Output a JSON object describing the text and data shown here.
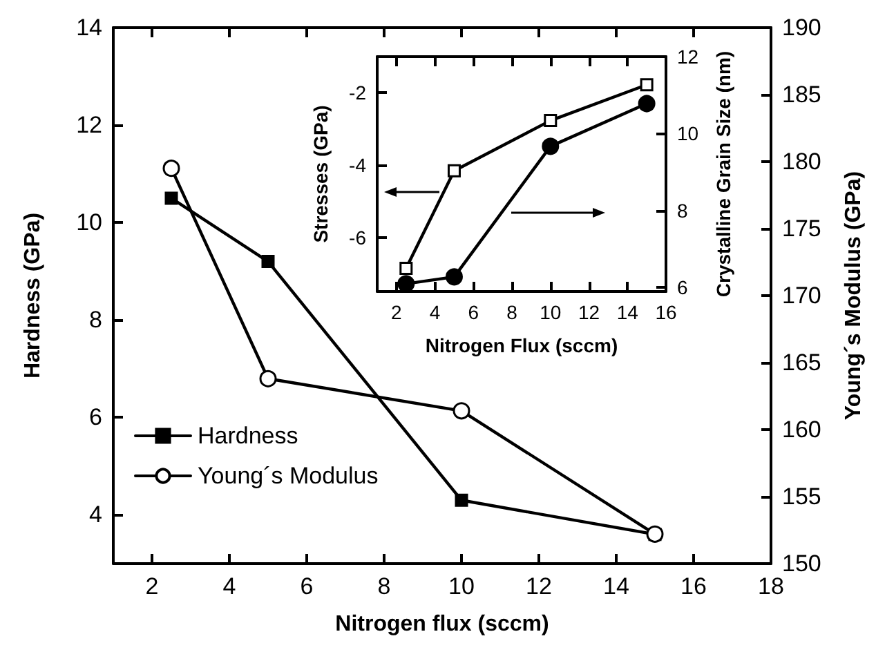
{
  "chart_data": [
    {
      "type": "line",
      "xlabel": "Nitrogen flux (sccm)",
      "ylabel": "Hardness (GPa)",
      "y2label": "Young´s Modulus (GPa)",
      "xlim": [
        1,
        18
      ],
      "xticks": [
        2,
        4,
        6,
        8,
        10,
        12,
        14,
        16,
        18
      ],
      "ylim": [
        3,
        14
      ],
      "yticks": [
        4,
        6,
        8,
        10,
        12,
        14
      ],
      "y2lim": [
        150,
        190
      ],
      "y2ticks": [
        150,
        155,
        160,
        165,
        170,
        175,
        180,
        185,
        190
      ],
      "legend": "bottom left",
      "line_style": "solid",
      "series": [
        {
          "name": "Hardness",
          "color": "#000000",
          "marker": "square",
          "x": [
            2.5,
            5,
            10,
            15
          ],
          "values": [
            10.5,
            9.2,
            4.3,
            3.6
          ]
        },
        {
          "name": "Young´s Modulus",
          "color": "#000000",
          "marker": "circle",
          "axis": "y2",
          "x": [
            2.5,
            5,
            10,
            15
          ],
          "values": [
            179.5,
            163.8,
            161.4,
            152.2
          ]
        }
      ]
    },
    {
      "type": "line",
      "xlabel": "Nitrogen Flux (sccm)",
      "ylabel": "Stresses (GPa)",
      "y2label": "Crystalline Grain Size (nm)",
      "xlim": [
        1,
        16
      ],
      "xticks": [
        2,
        4,
        6,
        8,
        10,
        12,
        14,
        16
      ],
      "ylim": [
        -7.5,
        -1
      ],
      "yticks": [
        -6,
        -4,
        -2
      ],
      "y2lim": [
        5.9,
        12
      ],
      "y2ticks": [
        6,
        8,
        10,
        12
      ],
      "line_style": "solid",
      "series": [
        {
          "color": "#000000",
          "marker": "square",
          "x": [
            2.5,
            5,
            10,
            15
          ],
          "values": [
            -6.86,
            -4.16,
            -2.77,
            -1.78
          ]
        },
        {
          "color": "#000000",
          "marker": "circle",
          "axis": "y2",
          "x": [
            2.5,
            5,
            10,
            15
          ],
          "values": [
            6.1,
            6.28,
            9.67,
            10.78
          ]
        }
      ]
    }
  ]
}
